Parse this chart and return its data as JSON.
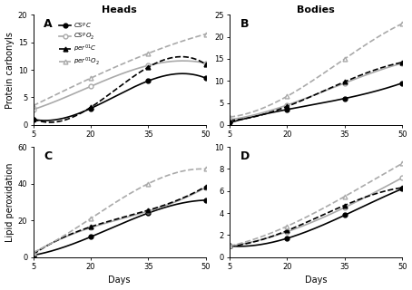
{
  "days": [
    5,
    20,
    35,
    50
  ],
  "A_CS_C": [
    1.0,
    3.0,
    8.0,
    8.5
  ],
  "A_CS_O2": [
    2.8,
    7.0,
    10.8,
    11.2
  ],
  "A_per01_C": [
    1.1,
    3.2,
    10.5,
    11.0
  ],
  "A_per01_O2": [
    3.5,
    8.5,
    13.0,
    16.5
  ],
  "B_CS_C": [
    0.5,
    3.5,
    6.0,
    9.5
  ],
  "B_CS_O2": [
    1.2,
    4.5,
    9.5,
    14.0
  ],
  "B_per01_C": [
    1.0,
    4.2,
    9.8,
    14.2
  ],
  "B_per01_O2": [
    1.8,
    6.5,
    15.0,
    23.0
  ],
  "C_CS_C": [
    1.0,
    11.0,
    24.0,
    31.0
  ],
  "C_CS_O2": [
    2.0,
    16.0,
    25.0,
    38.0
  ],
  "C_per01_C": [
    1.5,
    16.5,
    25.5,
    38.5
  ],
  "C_per01_O2": [
    2.5,
    21.0,
    40.0,
    48.0
  ],
  "D_CS_C": [
    1.0,
    1.7,
    3.8,
    6.2
  ],
  "D_CS_O2": [
    1.0,
    2.3,
    4.5,
    7.2
  ],
  "D_per01_C": [
    1.0,
    2.4,
    4.7,
    6.3
  ],
  "D_per01_O2": [
    1.0,
    2.8,
    5.5,
    8.5
  ],
  "A_ylim": [
    0,
    20
  ],
  "B_ylim": [
    0,
    25
  ],
  "C_ylim": [
    0,
    60
  ],
  "D_ylim": [
    0,
    10
  ],
  "A_yticks": [
    0,
    5,
    10,
    15,
    20
  ],
  "B_yticks": [
    0,
    5,
    10,
    15,
    20,
    25
  ],
  "C_yticks": [
    0,
    20,
    40,
    60
  ],
  "D_yticks": [
    0,
    2,
    4,
    6,
    8,
    10
  ],
  "color_black": "#000000",
  "color_gray": "#aaaaaa",
  "title_heads": "Heads",
  "title_bodies": "Bodies",
  "label_A": "A",
  "label_B": "B",
  "label_C": "C",
  "label_D": "D",
  "ylabel_top": "Protein carbonyls",
  "ylabel_bottom": "Lipid peroxidation",
  "xlabel": "Days",
  "legend_labels": [
    "$\\mathit{CS}^p\\mathit{C}$",
    "$\\mathit{CS}^p\\mathit{O}_2$",
    "$\\mathit{per}^{01}\\mathit{C}$",
    "$\\mathit{per}^{01}\\mathit{O}_2$"
  ]
}
